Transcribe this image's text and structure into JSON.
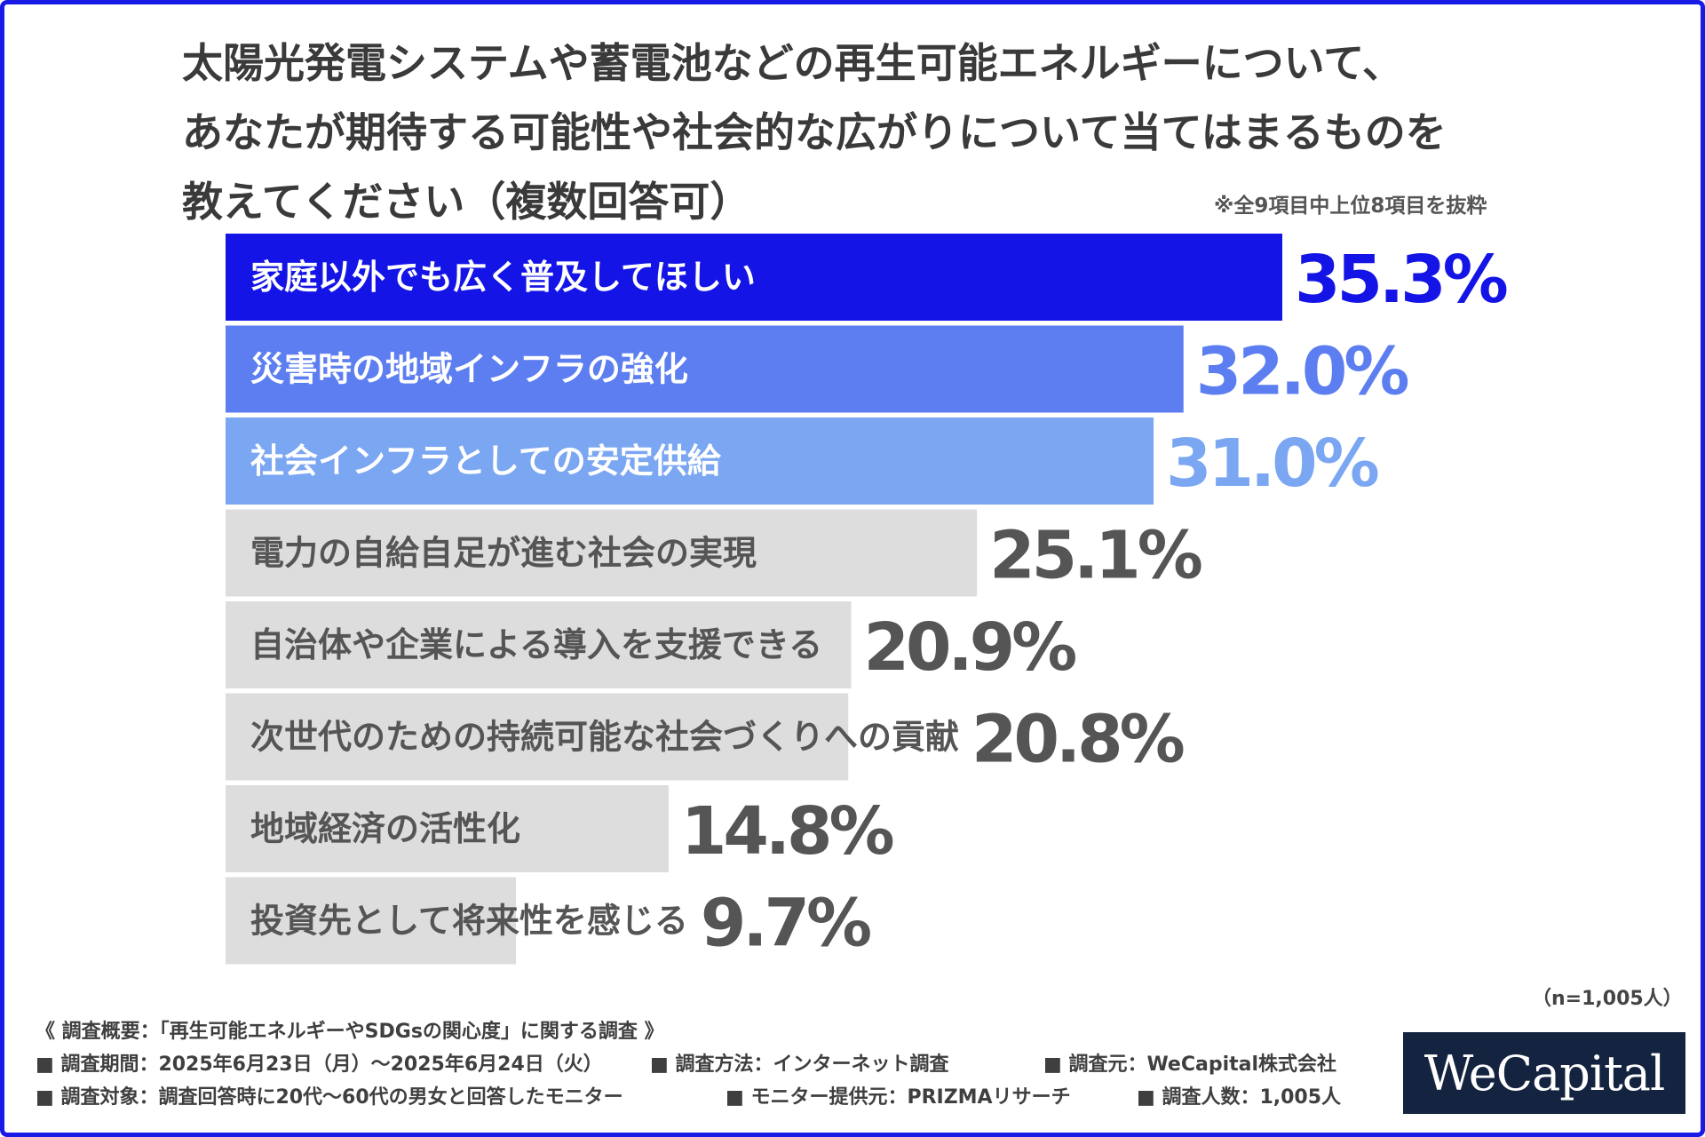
{
  "title_lines": [
    "太陽光発電システムや蓄電池などの再生可能エネルギーについて、",
    "あなたが期待する可能性や社会的な広がりについて当てはまるものを",
    "教えてください（複数回答可）"
  ],
  "note": "※全9項目中上位8項目を抜粋",
  "chart_data": {
    "type": "bar",
    "orientation": "horizontal",
    "title": "太陽光発電システムや蓄電池などの再生可能エネルギーについて、あなたが期待する可能性や社会的な広がりについて当てはまるものを教えてください（複数回答可）",
    "unit": "%",
    "categories": [
      "家庭以外でも広く普及してほしい",
      "災害時の地域インフラの強化",
      "社会インフラとしての安定供給",
      "電力の自給自足が進む社会の実現",
      "自治体や企業による導入を支援できる",
      "次世代のための持続可能な社会づくりへの貢献",
      "地域経済の活性化",
      "投資先として将来性を感じる"
    ],
    "values": [
      35.3,
      32.0,
      31.0,
      25.1,
      20.9,
      20.8,
      14.8,
      9.7
    ],
    "value_labels": [
      "35.3%",
      "32.0%",
      "31.0%",
      "25.1%",
      "20.9%",
      "20.8%",
      "14.8%",
      "9.7%"
    ],
    "bar_colors": [
      "#1414e6",
      "#5c7ef0",
      "#7aa6f2",
      "#dddddd",
      "#dddddd",
      "#dddddd",
      "#dddddd",
      "#dddddd"
    ],
    "value_colors": [
      "#1414e6",
      "#5c7ef0",
      "#7aa6f2",
      "#555555",
      "#555555",
      "#555555",
      "#555555",
      "#555555"
    ],
    "label_colors": [
      "#ffffff",
      "#ffffff",
      "#ffffff",
      "#555555",
      "#555555",
      "#555555",
      "#555555",
      "#555555"
    ],
    "xlim": [
      0,
      35.3
    ]
  },
  "n_label": "（n=1,005人）",
  "footer": {
    "heading": "《 調査概要：「再生可能エネルギーやSDGsの関心度」に関する調査 》",
    "period": "■ 調査期間：2025年6月23日（月）〜2025年6月24日（火）",
    "method": "■ 調査方法：インターネット調査",
    "source": "■ 調査元：WeCapital株式会社",
    "target": "■ 調査対象：調査回答時に20代〜60代の男女と回答したモニター",
    "provider": "■ モニター提供元：PRIZMAリサーチ",
    "count": "■ 調査人数：1,005人"
  },
  "logo": "WeCapital"
}
